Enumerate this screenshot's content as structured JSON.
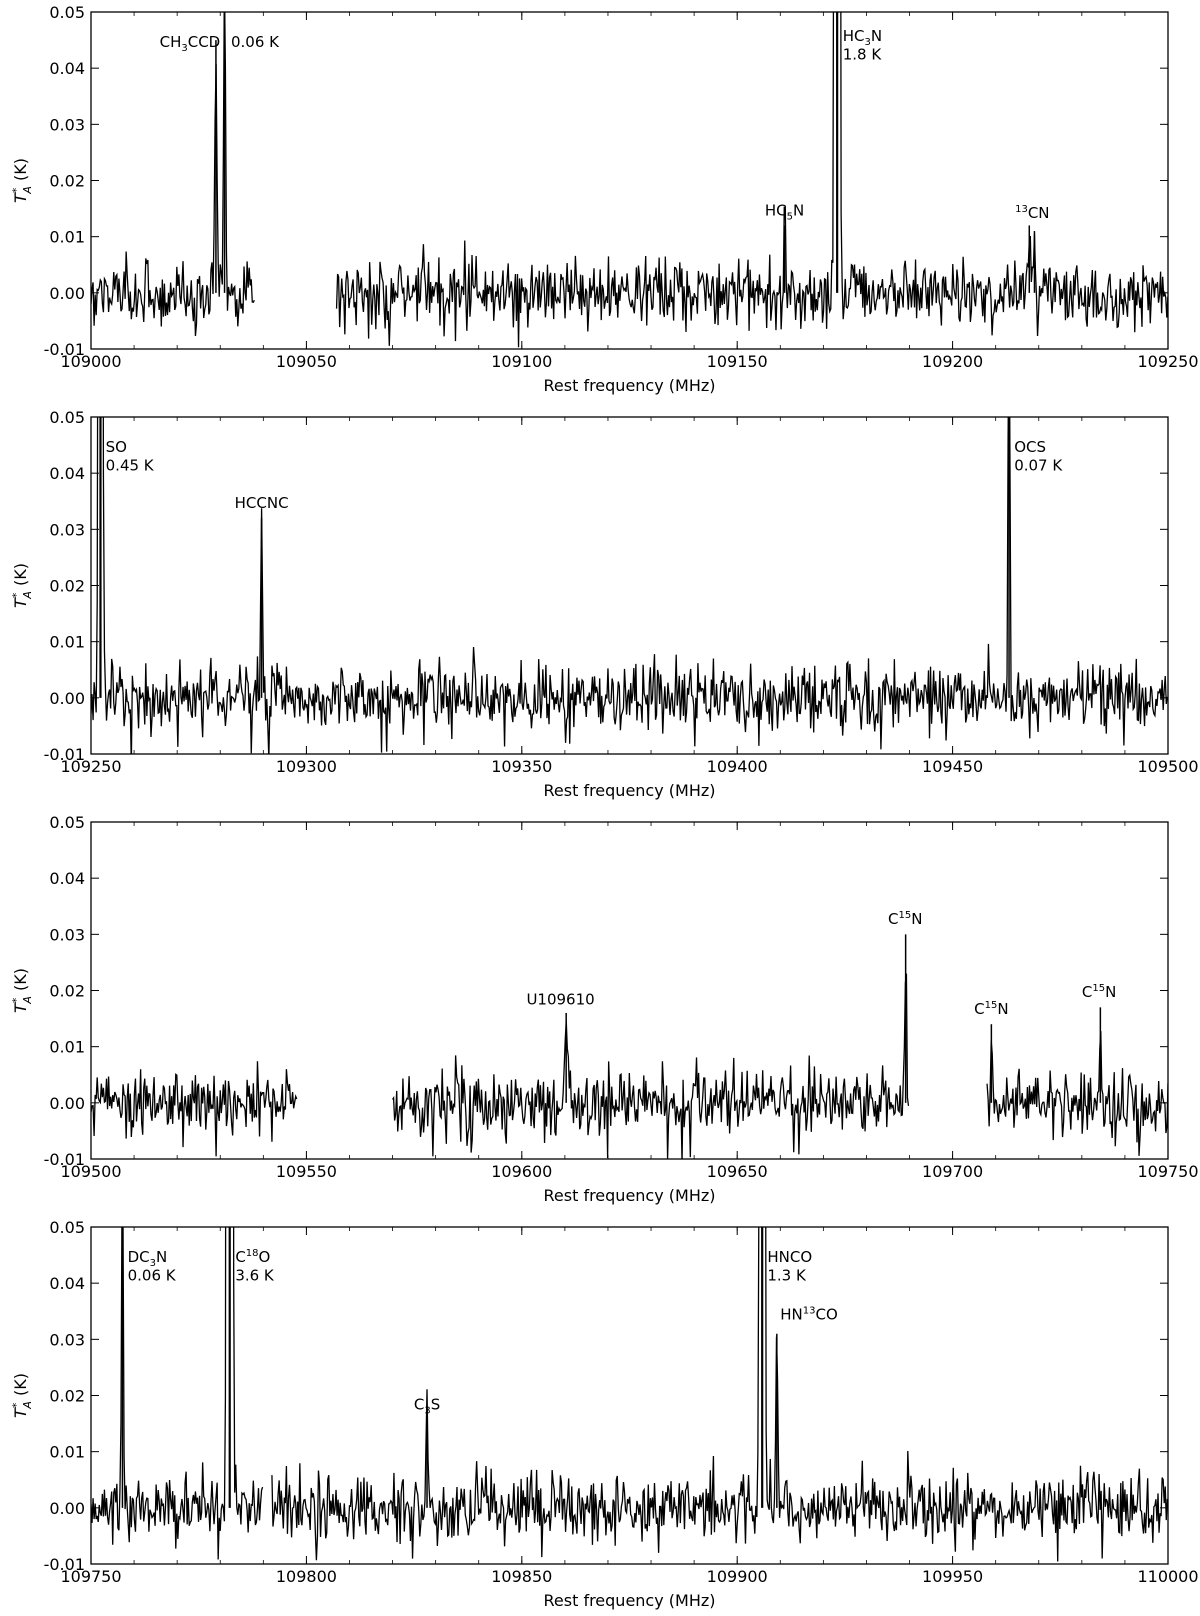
{
  "chart_data": [
    {
      "type": "line",
      "xlabel": "Rest frequency (MHz)",
      "ylabel": "T*A (K)",
      "xlim": [
        109000,
        109250
      ],
      "ylim": [
        -0.01,
        0.05
      ],
      "xticks": [
        109000,
        109050,
        109100,
        109150,
        109200,
        109250
      ],
      "yticks": [
        -0.01,
        0.0,
        0.01,
        0.02,
        0.03,
        0.04,
        0.05
      ],
      "noise_rms": 0.003,
      "segments": [
        [
          109000,
          109038
        ],
        [
          109057,
          109250
        ]
      ],
      "lines": [
        {
          "x": 109029.0,
          "y": 0.045
        },
        {
          "x": 109031.0,
          "y": 0.06
        },
        {
          "x": 109161.0,
          "y": 0.012
        },
        {
          "x": 109173.2,
          "y": 1.8
        },
        {
          "x": 109217.8,
          "y": 0.012
        },
        {
          "x": 109219.0,
          "y": 0.011
        }
      ],
      "annotations": [
        {
          "x": 109030.0,
          "y": 0.0438,
          "text": "CH3CCD",
          "parts": [
            [
              "CH"
            ],
            [
              "3",
              "sub"
            ],
            [
              "CCD"
            ]
          ],
          "anchor": "end"
        },
        {
          "x": 109032.5,
          "y": 0.0438,
          "text": "0.06 K",
          "parts": [
            [
              "0.06 K"
            ]
          ],
          "anchor": "start"
        },
        {
          "x": 109174.5,
          "y": 0.0448,
          "text": "HC3N",
          "parts": [
            [
              "HC"
            ],
            [
              "3",
              "sub"
            ],
            [
              "N"
            ]
          ],
          "anchor": "start"
        },
        {
          "x": 109174.5,
          "y": 0.0415,
          "text": "1.8 K",
          "parts": [
            [
              "1.8 K"
            ]
          ],
          "anchor": "start"
        },
        {
          "x": 109161.0,
          "y": 0.0138,
          "text": "HC5N",
          "parts": [
            [
              "HC"
            ],
            [
              "5",
              "sub"
            ],
            [
              "N"
            ]
          ],
          "anchor": "middle"
        },
        {
          "x": 109218.5,
          "y": 0.0133,
          "text": "13CN",
          "parts": [
            [
              "13",
              "sup"
            ],
            [
              "CN"
            ]
          ],
          "anchor": "middle"
        }
      ]
    },
    {
      "type": "line",
      "xlabel": "Rest frequency (MHz)",
      "ylabel": "T*A (K)",
      "xlim": [
        109250,
        109500
      ],
      "ylim": [
        -0.01,
        0.05
      ],
      "xticks": [
        109250,
        109300,
        109350,
        109400,
        109450,
        109500
      ],
      "yticks": [
        -0.01,
        0.0,
        0.01,
        0.02,
        0.03,
        0.04,
        0.05
      ],
      "noise_rms": 0.003,
      "segments": [
        [
          109250,
          109500
        ]
      ],
      "lines": [
        {
          "x": 109252.2,
          "y": 0.45
        },
        {
          "x": 109289.6,
          "y": 0.032
        },
        {
          "x": 109463.1,
          "y": 0.07
        }
      ],
      "annotations": [
        {
          "x": 109253.4,
          "y": 0.0438,
          "text": "SO",
          "parts": [
            [
              "SO"
            ]
          ],
          "anchor": "start"
        },
        {
          "x": 109253.4,
          "y": 0.0405,
          "text": "0.45 K",
          "parts": [
            [
              "0.45 K"
            ]
          ],
          "anchor": "start"
        },
        {
          "x": 109289.6,
          "y": 0.0338,
          "text": "HCCNC",
          "parts": [
            [
              "HCCNC"
            ]
          ],
          "anchor": "middle"
        },
        {
          "x": 109464.3,
          "y": 0.0438,
          "text": "OCS",
          "parts": [
            [
              "OCS"
            ]
          ],
          "anchor": "start"
        },
        {
          "x": 109464.3,
          "y": 0.0405,
          "text": "0.07 K",
          "parts": [
            [
              "0.07 K"
            ]
          ],
          "anchor": "start"
        }
      ]
    },
    {
      "type": "line",
      "xlabel": "Rest frequency (MHz)",
      "ylabel": "T*A (K)",
      "xlim": [
        109500,
        109750
      ],
      "ylim": [
        -0.01,
        0.05
      ],
      "xticks": [
        109500,
        109550,
        109600,
        109650,
        109700,
        109750
      ],
      "yticks": [
        -0.01,
        0.0,
        0.01,
        0.02,
        0.03,
        0.04,
        0.05
      ],
      "noise_rms": 0.003,
      "segments": [
        [
          109500,
          109548
        ],
        [
          109570,
          109690
        ],
        [
          109708,
          109750
        ]
      ],
      "lines": [
        {
          "x": 109610.3,
          "y": 0.016
        },
        {
          "x": 109689.1,
          "y": 0.03
        },
        {
          "x": 109709.0,
          "y": 0.014
        },
        {
          "x": 109734.3,
          "y": 0.017
        }
      ],
      "annotations": [
        {
          "x": 109609.0,
          "y": 0.0175,
          "text": "U109610",
          "parts": [
            [
              "U109610"
            ]
          ],
          "anchor": "middle"
        },
        {
          "x": 109689.0,
          "y": 0.0318,
          "text": "C15N",
          "parts": [
            [
              "C"
            ],
            [
              "15",
              "sup"
            ],
            [
              "N"
            ]
          ],
          "anchor": "middle"
        },
        {
          "x": 109709.0,
          "y": 0.0158,
          "text": "C15N",
          "parts": [
            [
              "C"
            ],
            [
              "15",
              "sup"
            ],
            [
              "N"
            ]
          ],
          "anchor": "middle"
        },
        {
          "x": 109734.0,
          "y": 0.0188,
          "text": "C15N",
          "parts": [
            [
              "C"
            ],
            [
              "15",
              "sup"
            ],
            [
              "N"
            ]
          ],
          "anchor": "middle"
        }
      ]
    },
    {
      "type": "line",
      "xlabel": "Rest frequency (MHz)",
      "ylabel": "T*A (K)",
      "xlim": [
        109750,
        110000
      ],
      "ylim": [
        -0.01,
        0.05
      ],
      "xticks": [
        109750,
        109800,
        109850,
        109900,
        109950,
        110000
      ],
      "yticks": [
        -0.01,
        0.0,
        0.01,
        0.02,
        0.03,
        0.04,
        0.05
      ],
      "noise_rms": 0.003,
      "segments": [
        [
          109750,
          109790
        ],
        [
          109792,
          110000
        ]
      ],
      "lines": [
        {
          "x": 109757.3,
          "y": 0.06
        },
        {
          "x": 109782.2,
          "y": 3.6
        },
        {
          "x": 109828.0,
          "y": 0.016
        },
        {
          "x": 109905.8,
          "y": 1.3
        },
        {
          "x": 109909.2,
          "y": 0.031
        }
      ],
      "annotations": [
        {
          "x": 109758.5,
          "y": 0.0438,
          "text": "DC3N",
          "parts": [
            [
              "DC"
            ],
            [
              "3",
              "sub"
            ],
            [
              "N"
            ]
          ],
          "anchor": "start"
        },
        {
          "x": 109758.5,
          "y": 0.0405,
          "text": "0.06 K",
          "parts": [
            [
              "0.06 K"
            ]
          ],
          "anchor": "start"
        },
        {
          "x": 109783.5,
          "y": 0.0438,
          "text": "C18O",
          "parts": [
            [
              "C"
            ],
            [
              "18",
              "sup"
            ],
            [
              "O"
            ]
          ],
          "anchor": "start"
        },
        {
          "x": 109783.5,
          "y": 0.0405,
          "text": "3.6 K",
          "parts": [
            [
              "3.6 K"
            ]
          ],
          "anchor": "start"
        },
        {
          "x": 109907.0,
          "y": 0.0438,
          "text": "HNCO",
          "parts": [
            [
              "HNCO"
            ]
          ],
          "anchor": "start"
        },
        {
          "x": 109907.0,
          "y": 0.0405,
          "text": "1.3 K",
          "parts": [
            [
              "1.3 K"
            ]
          ],
          "anchor": "start"
        },
        {
          "x": 109910.0,
          "y": 0.0335,
          "text": "HN13CO",
          "parts": [
            [
              "HN"
            ],
            [
              "13",
              "sup"
            ],
            [
              "CO"
            ]
          ],
          "anchor": "start"
        },
        {
          "x": 109828.0,
          "y": 0.0175,
          "text": "C3S",
          "parts": [
            [
              "C"
            ],
            [
              "3",
              "sub"
            ],
            [
              "S"
            ]
          ],
          "anchor": "middle"
        }
      ]
    }
  ]
}
